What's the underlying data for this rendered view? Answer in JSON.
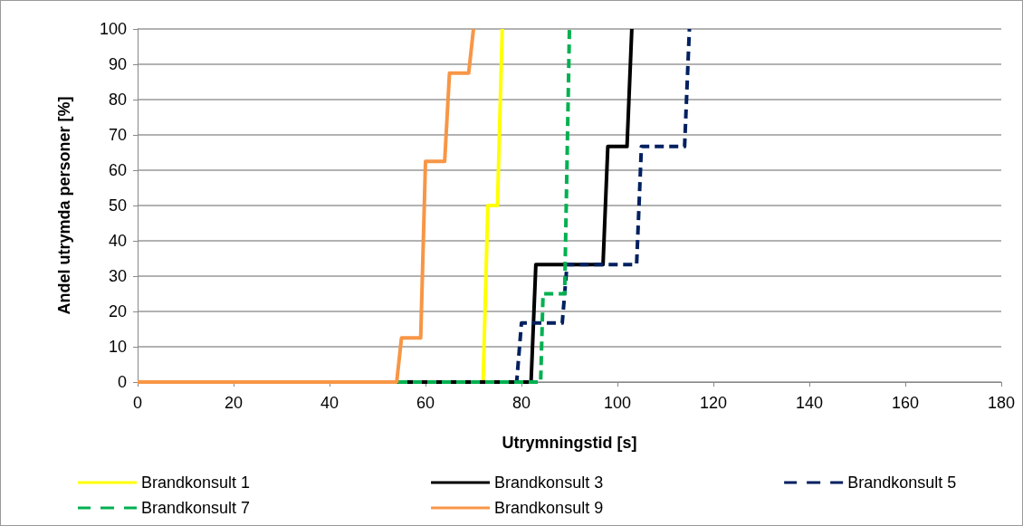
{
  "chart_data": {
    "type": "line",
    "xlabel": "Utrymningstid [s]",
    "ylabel": "Andel utrymda personer [%]",
    "xlim": [
      0,
      180
    ],
    "xticks": [
      0,
      20,
      40,
      60,
      80,
      100,
      120,
      140,
      160,
      180
    ],
    "ylim": [
      0,
      100
    ],
    "yticks": [
      0,
      10,
      20,
      30,
      40,
      50,
      60,
      70,
      80,
      90,
      100
    ],
    "grid": "y",
    "legend": "bottom",
    "marker": "none",
    "series": [
      {
        "name": "Brandkonsult 1",
        "color": "#ffff00",
        "line_style": "solid",
        "x": [
          0,
          72,
          73,
          75,
          76
        ],
        "values": [
          0,
          0,
          50,
          50,
          100
        ]
      },
      {
        "name": "Brandkonsult 3",
        "color": "#000000",
        "line_style": "solid",
        "x": [
          0,
          82,
          83,
          97,
          98,
          102,
          103
        ],
        "values": [
          0,
          0,
          33.3,
          33.3,
          66.7,
          66.7,
          100
        ]
      },
      {
        "name": "Brandkonsult 5",
        "color": "#002060",
        "line_style": "dashed",
        "x": [
          0,
          79,
          80,
          88.5,
          89.5,
          104,
          105,
          114,
          115
        ],
        "values": [
          0,
          0,
          16.7,
          16.7,
          33.3,
          33.3,
          66.7,
          66.7,
          100
        ]
      },
      {
        "name": "Brandkonsult 7",
        "color": "#00b050",
        "line_style": "dashed",
        "x": [
          0,
          84,
          84.5,
          89,
          90
        ],
        "values": [
          0,
          0,
          25,
          25,
          100
        ]
      },
      {
        "name": "Brandkonsult 9",
        "color": "#f79646",
        "line_style": "solid",
        "x": [
          0,
          54,
          55,
          59,
          60,
          64,
          65,
          69,
          70
        ],
        "values": [
          0,
          0,
          12.5,
          12.5,
          62.5,
          62.5,
          87.5,
          87.5,
          100
        ]
      }
    ]
  }
}
